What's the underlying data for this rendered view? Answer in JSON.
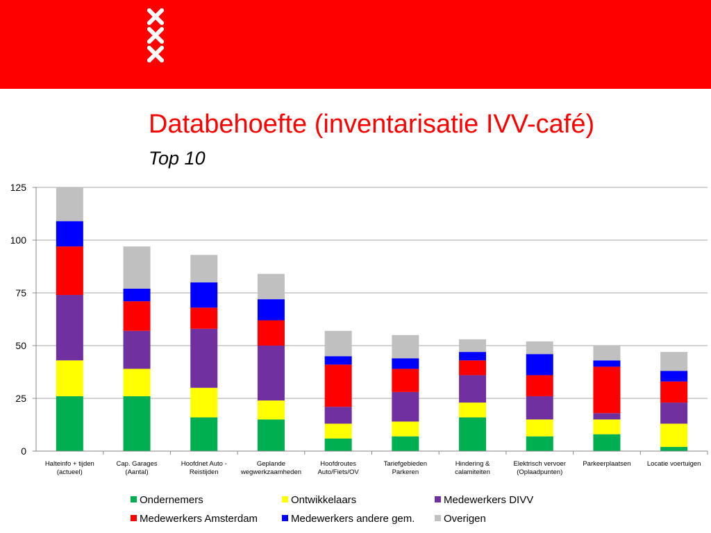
{
  "header": {
    "logo_icon": "amsterdam-xxx-crosses-icon",
    "banner_color": "#ff0000"
  },
  "slide": {
    "title": "Databehoefte (inventarisatie IVV-café)",
    "subtitle": "Top 10"
  },
  "chart_data": {
    "type": "bar",
    "stacked": true,
    "title": "",
    "xlabel": "",
    "ylabel": "",
    "ylim": [
      0,
      125
    ],
    "yticks": [
      0,
      25,
      50,
      75,
      100,
      125
    ],
    "grid": true,
    "legend_position": "bottom",
    "categories": [
      [
        "Halteinfo + tijden",
        "(actueel)"
      ],
      [
        "Cap. Garages",
        "(Aantal)"
      ],
      [
        "Hoofdnet Auto -",
        "Reistijden"
      ],
      [
        "Geplande",
        "wegwerkzaamheden"
      ],
      [
        "Hoofdroutes",
        "Auto/Fiets/OV"
      ],
      [
        "Tariefgebieden",
        "Parkeren"
      ],
      [
        "Hindering &",
        "calamiteiten"
      ],
      [
        "Elektrisch vervoer",
        "(Oplaadpunten)"
      ],
      [
        "Parkeerplaatsen"
      ],
      [
        "Locatie voertuigen"
      ]
    ],
    "series": [
      {
        "name": "Ondernemers",
        "color": "#00b050",
        "values": [
          26,
          26,
          16,
          15,
          6,
          7,
          16,
          7,
          8,
          2
        ]
      },
      {
        "name": "Ontwikkelaars",
        "color": "#ffff00",
        "values": [
          17,
          13,
          14,
          9,
          7,
          7,
          7,
          8,
          7,
          11
        ]
      },
      {
        "name": "Medewerkers DIVV",
        "color": "#7030a0",
        "values": [
          31,
          18,
          28,
          26,
          8,
          14,
          13,
          11,
          3,
          10
        ]
      },
      {
        "name": "Medewerkers Amsterdam",
        "color": "#ff0000",
        "values": [
          23,
          14,
          10,
          12,
          20,
          11,
          7,
          10,
          22,
          10
        ]
      },
      {
        "name": "Medewerkers andere gem.",
        "color": "#0000ff",
        "values": [
          12,
          6,
          12,
          10,
          4,
          5,
          4,
          10,
          3,
          5
        ]
      },
      {
        "name": "Overigen",
        "color": "#c0c0c0",
        "values": [
          16,
          20,
          13,
          12,
          12,
          11,
          6,
          6,
          7,
          9
        ]
      }
    ]
  }
}
